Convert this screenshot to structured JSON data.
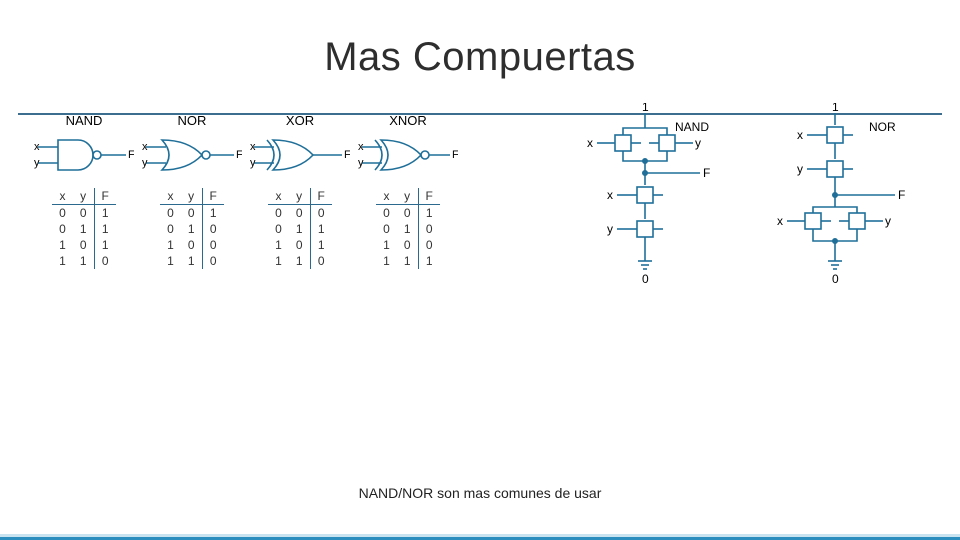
{
  "title": "Mas Compuertas",
  "caption": "NAND/NOR son mas comunes de usar",
  "colors": {
    "stroke": "#1f6f99",
    "title_rule": "#3c6e8f",
    "footer": "#2b8cbe",
    "footer_top": "#c9e3f0",
    "text": "#000"
  },
  "gates": [
    {
      "name": "NAND",
      "type": "nand",
      "inputs": [
        "x",
        "y"
      ],
      "output": "F",
      "rows": [
        [
          "0",
          "0",
          "1"
        ],
        [
          "0",
          "1",
          "1"
        ],
        [
          "1",
          "0",
          "1"
        ],
        [
          "1",
          "1",
          "0"
        ]
      ]
    },
    {
      "name": "NOR",
      "type": "nor",
      "inputs": [
        "x",
        "y"
      ],
      "output": "F",
      "rows": [
        [
          "0",
          "0",
          "1"
        ],
        [
          "0",
          "1",
          "0"
        ],
        [
          "1",
          "0",
          "0"
        ],
        [
          "1",
          "1",
          "0"
        ]
      ]
    },
    {
      "name": "XOR",
      "type": "xor",
      "inputs": [
        "x",
        "y"
      ],
      "output": "F",
      "rows": [
        [
          "0",
          "0",
          "0"
        ],
        [
          "0",
          "1",
          "1"
        ],
        [
          "1",
          "0",
          "1"
        ],
        [
          "1",
          "1",
          "0"
        ]
      ]
    },
    {
      "name": "XNOR",
      "type": "xnor",
      "inputs": [
        "x",
        "y"
      ],
      "output": "F",
      "rows": [
        [
          "0",
          "0",
          "1"
        ],
        [
          "0",
          "1",
          "0"
        ],
        [
          "1",
          "0",
          "0"
        ],
        [
          "1",
          "1",
          "1"
        ]
      ]
    }
  ],
  "cmos": {
    "nand": {
      "label": "NAND",
      "vdd": "1",
      "gnd": "0",
      "in_top": [
        "x",
        "y"
      ],
      "series": [
        "x",
        "y"
      ],
      "out": "F"
    },
    "nor": {
      "label": "NOR",
      "vdd": "1",
      "gnd": "0",
      "in_bot": [
        "x",
        "y"
      ],
      "series": [
        "x",
        "y"
      ],
      "out": "F"
    }
  }
}
